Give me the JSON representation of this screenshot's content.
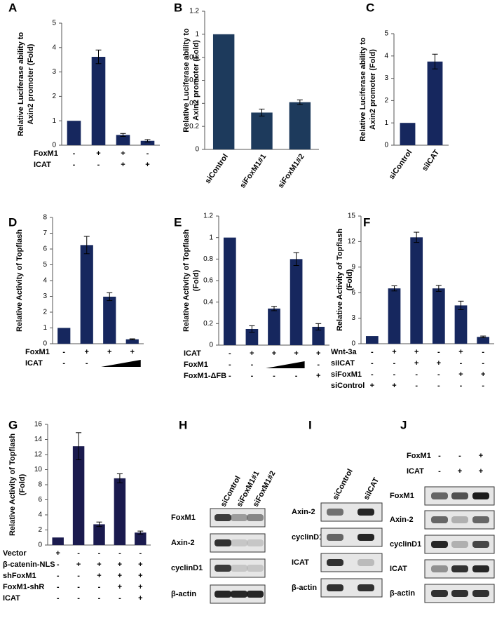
{
  "chart_data": [
    {
      "type": "bar",
      "panel": "A",
      "ylabel": [
        "Relative Luciferase ability to",
        "Axin2 promoter (Fold)"
      ],
      "ylim": [
        0,
        5
      ],
      "yticks": [
        0,
        1,
        2,
        3,
        4,
        5
      ],
      "values": [
        1,
        3.62,
        0.42,
        0.18
      ],
      "errors": [
        null,
        0.28,
        0.06,
        0.05
      ],
      "color": "#16275e",
      "conditions": [
        {
          "name": "FoxM1",
          "marks": [
            "-",
            "+",
            "+",
            "-"
          ]
        },
        {
          "name": "ICAT",
          "marks": [
            "-",
            "-",
            "+",
            "+"
          ]
        }
      ]
    },
    {
      "type": "bar",
      "panel": "B",
      "ylabel": [
        "Relative Luciferase ability to",
        "Axin2 promoter (Fold)"
      ],
      "ylim": [
        0,
        1.2
      ],
      "yticks": [
        0,
        0.2,
        0.4,
        0.6,
        0.8,
        1,
        1.2
      ],
      "categories": [
        "siControl",
        "siFoxM1#1",
        "siFoxM1#2"
      ],
      "values": [
        1,
        0.32,
        0.41
      ],
      "errors": [
        null,
        0.03,
        0.02
      ],
      "color": "#1d3a5c"
    },
    {
      "type": "bar",
      "panel": "C",
      "ylabel": [
        "Relative Luciferase ability to",
        "Axin2 promoter (Fold)"
      ],
      "ylim": [
        0,
        5
      ],
      "yticks": [
        0,
        1,
        2,
        3,
        4,
        5
      ],
      "categories": [
        "siControl",
        "siICAT"
      ],
      "values": [
        1,
        3.75
      ],
      "errors": [
        null,
        0.33
      ],
      "color": "#16275e"
    },
    {
      "type": "bar",
      "panel": "D",
      "ylabel": [
        "Relative Activity of Topflash"
      ],
      "ylim": [
        0,
        8
      ],
      "yticks": [
        0,
        1,
        2,
        3,
        4,
        5,
        6,
        7,
        8
      ],
      "values": [
        1,
        6.25,
        2.98,
        0.28
      ],
      "errors": [
        null,
        0.55,
        0.25,
        0.03
      ],
      "color": "#16275e",
      "conditions": [
        {
          "name": "FoxM1",
          "marks": [
            "-",
            "+",
            "+",
            "+"
          ]
        },
        {
          "name": "ICAT",
          "marks": [
            "-",
            "-",
            null,
            null
          ]
        }
      ]
    },
    {
      "type": "bar",
      "panel": "E",
      "ylabel": [
        "Relative Activity of Topflash",
        "(Fold)"
      ],
      "ylim": [
        0,
        1.2
      ],
      "yticks": [
        0,
        0.2,
        0.4,
        0.6,
        0.8,
        1,
        1.2
      ],
      "values": [
        1,
        0.15,
        0.34,
        0.8,
        0.17
      ],
      "errors": [
        null,
        0.03,
        0.02,
        0.06,
        0.03
      ],
      "color": "#16275e",
      "conditions": [
        {
          "name": "ICAT",
          "marks": [
            "-",
            "+",
            "+",
            "+",
            "+"
          ]
        },
        {
          "name": "FoxM1",
          "marks": [
            "-",
            "-",
            null,
            null,
            "-"
          ]
        },
        {
          "name": "FoxM1-ΔFB",
          "marks": [
            "-",
            "-",
            "-",
            "-",
            "+"
          ]
        }
      ]
    },
    {
      "type": "bar",
      "panel": "F",
      "ylabel": [
        "Relative Activity of Topflash",
        "(Fold)"
      ],
      "ylim": [
        0,
        15
      ],
      "yticks": [
        0,
        3,
        6,
        9,
        12,
        15
      ],
      "values": [
        0.9,
        6.5,
        12.5,
        6.5,
        4.5,
        0.8
      ],
      "errors": [
        null,
        0.3,
        0.6,
        0.35,
        0.5,
        0.1
      ],
      "color": "#16275e",
      "conditions": [
        {
          "name": "Wnt-3a",
          "marks": [
            "-",
            "+",
            "+",
            "-",
            "+",
            "-"
          ]
        },
        {
          "name": "siICAT",
          "marks": [
            "-",
            "-",
            "+",
            "+",
            "-",
            "-"
          ]
        },
        {
          "name": "siFoxM1",
          "marks": [
            "-",
            "-",
            "-",
            "-",
            "+",
            "+"
          ]
        },
        {
          "name": "siControl",
          "marks": [
            "+",
            "+",
            "-",
            "-",
            "-",
            "-"
          ]
        }
      ]
    },
    {
      "type": "bar",
      "panel": "G",
      "ylabel": [
        "Relative Activity of Topflash",
        "(Fold)"
      ],
      "ylim": [
        0,
        16
      ],
      "yticks": [
        0,
        2,
        4,
        6,
        8,
        10,
        12,
        14,
        16
      ],
      "values": [
        1,
        13.1,
        2.75,
        8.85,
        1.65
      ],
      "errors": [
        null,
        1.8,
        0.3,
        0.6,
        0.2
      ],
      "color": "#1a1a4e",
      "conditions": [
        {
          "name": "Vector",
          "marks": [
            "+",
            "-",
            "-",
            "-",
            "-"
          ]
        },
        {
          "name": "β-catenin-NLS",
          "marks": [
            "-",
            "+",
            "+",
            "+",
            "+"
          ]
        },
        {
          "name": "shFoxM1",
          "marks": [
            "-",
            "-",
            "+",
            "+",
            "+"
          ]
        },
        {
          "name": "FoxM1-shR",
          "marks": [
            "-",
            "-",
            "-",
            "+",
            "+"
          ]
        },
        {
          "name": "ICAT",
          "marks": [
            "-",
            "-",
            "-",
            "-",
            "+"
          ]
        }
      ]
    }
  ],
  "blots": [
    {
      "panel": "H",
      "lanes": [
        "siControl",
        "siFoxM1#1",
        "siFoxM1#2"
      ],
      "rows": [
        {
          "name": "FoxM1",
          "signal": [
            0.8,
            0.35,
            0.45
          ]
        },
        {
          "name": "Axin-2",
          "signal": [
            0.85,
            0.15,
            0.15
          ]
        },
        {
          "name": "cyclinD1",
          "signal": [
            0.8,
            0.15,
            0.15
          ]
        },
        {
          "name": "β-actin",
          "signal": [
            0.9,
            0.9,
            0.9
          ]
        }
      ]
    },
    {
      "panel": "I",
      "lanes": [
        "siControl",
        "siICAT"
      ],
      "rows": [
        {
          "name": "Axin-2",
          "signal": [
            0.55,
            0.9
          ]
        },
        {
          "name": "cyclinD1",
          "signal": [
            0.6,
            0.9
          ]
        },
        {
          "name": "ICAT",
          "signal": [
            0.85,
            0.2
          ]
        },
        {
          "name": "β-actin",
          "signal": [
            0.85,
            0.85
          ]
        }
      ]
    },
    {
      "panel": "J",
      "conditions": [
        {
          "name": "FoxM1",
          "marks": [
            "-",
            "-",
            "+"
          ]
        },
        {
          "name": "ICAT",
          "marks": [
            "-",
            "+",
            "+"
          ]
        }
      ],
      "rows": [
        {
          "name": "FoxM1",
          "signal": [
            0.6,
            0.7,
            0.95
          ]
        },
        {
          "name": "Axin-2",
          "signal": [
            0.6,
            0.25,
            0.6
          ]
        },
        {
          "name": "cyclinD1",
          "signal": [
            0.9,
            0.25,
            0.75
          ]
        },
        {
          "name": "ICAT",
          "signal": [
            0.4,
            0.85,
            0.9
          ]
        },
        {
          "name": "β-actin",
          "signal": [
            0.85,
            0.85,
            0.85
          ]
        }
      ]
    }
  ]
}
